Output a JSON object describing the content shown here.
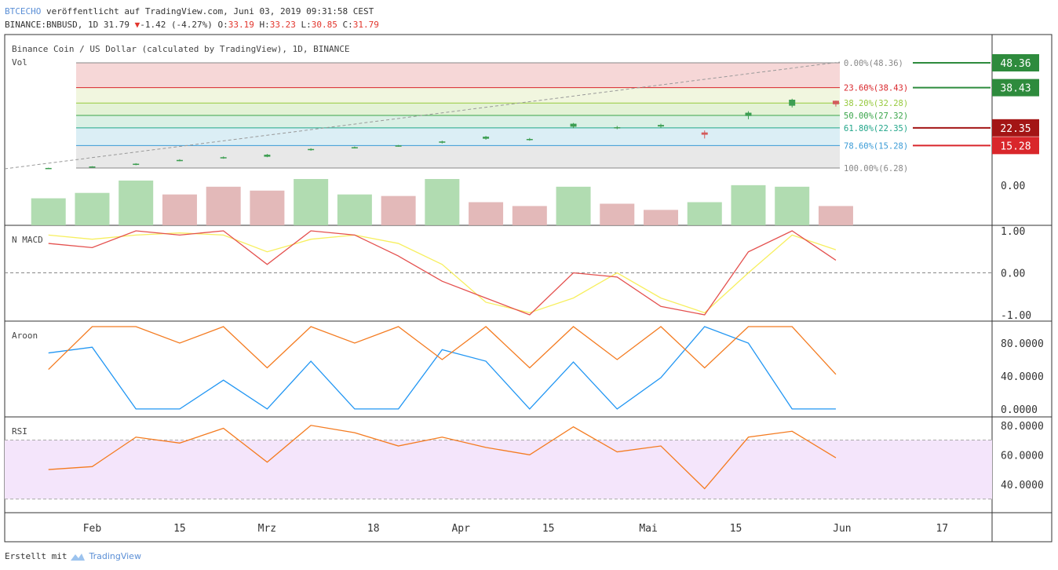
{
  "header": {
    "publisher": "BTCECHO",
    "published_text": "veröffentlicht auf TradingView.com, Juni 03, 2019 09:31:58 CEST",
    "symbol_line_prefix": "BINANCE:BNBUSD, 1D 31.79",
    "change": "-1.42 (-4.27%)",
    "ohlc_o_label": "O:",
    "ohlc_o": "33.19",
    "ohlc_h_label": "H:",
    "ohlc_h": "33.23",
    "ohlc_l_label": "L:",
    "ohlc_l": "30.85",
    "ohlc_c_label": "C:",
    "ohlc_c": "31.79"
  },
  "footer": {
    "created_with": "Erstellt mit",
    "brand": "TradingView"
  },
  "colors": {
    "up": "#3d9e52",
    "down": "#d35b5b",
    "vol_up": "#a9d8a9",
    "vol_down": "#e0b1b1",
    "macd": "#e4504e",
    "signal": "#f7ef5f",
    "aroon_up": "#f47b20",
    "aroon_down": "#2196f3",
    "rsi": "#f47b20",
    "rsi_band": "#f4e5fb",
    "price_green": "#2e8b3d",
    "price_red": "#d9262b",
    "price_darkred": "#a31515"
  },
  "chart_data": [
    {
      "type": "candlestick",
      "title": "Binance Coin / US Dollar (calculated by TradingView), 1D, BINANCE",
      "sub_label": "Vol",
      "ohlc": [
        {
          "x": "2019-01-25",
          "o": 6.2,
          "h": 6.4,
          "l": 6.0,
          "c": 6.3
        },
        {
          "x": "2019-02-01",
          "o": 6.5,
          "h": 7.0,
          "l": 6.4,
          "c": 6.9
        },
        {
          "x": "2019-02-08",
          "o": 7.6,
          "h": 8.2,
          "l": 7.4,
          "c": 8.0
        },
        {
          "x": "2019-02-15",
          "o": 9.2,
          "h": 9.8,
          "l": 9.0,
          "c": 9.5
        },
        {
          "x": "2019-02-22",
          "o": 10.3,
          "h": 10.9,
          "l": 10.0,
          "c": 10.6
        },
        {
          "x": "2019-03-01",
          "o": 10.8,
          "h": 11.9,
          "l": 10.6,
          "c": 11.6
        },
        {
          "x": "2019-03-08",
          "o": 13.5,
          "h": 14.2,
          "l": 13.2,
          "c": 13.9
        },
        {
          "x": "2019-03-15",
          "o": 14.4,
          "h": 14.9,
          "l": 14.1,
          "c": 14.6
        },
        {
          "x": "2019-03-22",
          "o": 15.0,
          "h": 15.5,
          "l": 14.8,
          "c": 15.3
        },
        {
          "x": "2019-03-29",
          "o": 16.4,
          "h": 17.2,
          "l": 16.1,
          "c": 16.9
        },
        {
          "x": "2019-04-05",
          "o": 18.0,
          "h": 19.1,
          "l": 17.6,
          "c": 18.8
        },
        {
          "x": "2019-04-12",
          "o": 17.6,
          "h": 18.3,
          "l": 17.2,
          "c": 17.9
        },
        {
          "x": "2019-04-19",
          "o": 22.8,
          "h": 24.3,
          "l": 22.2,
          "c": 24.0
        },
        {
          "x": "2019-04-26",
          "o": 22.5,
          "h": 23.1,
          "l": 21.8,
          "c": 22.6
        },
        {
          "x": "2019-05-03",
          "o": 22.9,
          "h": 24.0,
          "l": 22.4,
          "c": 23.5
        },
        {
          "x": "2019-05-10",
          "o": 20.5,
          "h": 21.3,
          "l": 18.1,
          "c": 19.6
        },
        {
          "x": "2019-05-17",
          "o": 27.1,
          "h": 29.0,
          "l": 25.8,
          "c": 28.4
        },
        {
          "x": "2019-05-24",
          "o": 31.2,
          "h": 34.0,
          "l": 30.5,
          "c": 33.6
        },
        {
          "x": "2019-05-31",
          "o": 33.19,
          "h": 33.23,
          "l": 30.85,
          "c": 31.79
        }
      ],
      "volume": [
        {
          "x": "2019-01-25",
          "v": 35,
          "dir": "up"
        },
        {
          "x": "2019-02-01",
          "v": 42,
          "dir": "up"
        },
        {
          "x": "2019-02-08",
          "v": 58,
          "dir": "up"
        },
        {
          "x": "2019-02-15",
          "v": 40,
          "dir": "down"
        },
        {
          "x": "2019-02-22",
          "v": 50,
          "dir": "down"
        },
        {
          "x": "2019-03-01",
          "v": 45,
          "dir": "down"
        },
        {
          "x": "2019-03-08",
          "v": 60,
          "dir": "up"
        },
        {
          "x": "2019-03-15",
          "v": 40,
          "dir": "up"
        },
        {
          "x": "2019-03-22",
          "v": 38,
          "dir": "down"
        },
        {
          "x": "2019-03-29",
          "v": 60,
          "dir": "up"
        },
        {
          "x": "2019-04-05",
          "v": 30,
          "dir": "down"
        },
        {
          "x": "2019-04-12",
          "v": 25,
          "dir": "down"
        },
        {
          "x": "2019-04-19",
          "v": 50,
          "dir": "up"
        },
        {
          "x": "2019-04-26",
          "v": 28,
          "dir": "down"
        },
        {
          "x": "2019-05-03",
          "v": 20,
          "dir": "down"
        },
        {
          "x": "2019-05-10",
          "v": 30,
          "dir": "up"
        },
        {
          "x": "2019-05-17",
          "v": 52,
          "dir": "up"
        },
        {
          "x": "2019-05-24",
          "v": 50,
          "dir": "up"
        },
        {
          "x": "2019-05-31",
          "v": 25,
          "dir": "down"
        }
      ],
      "x_ticks": [
        "Feb",
        "15",
        "Mrz",
        "18",
        "Apr",
        "15",
        "Mai",
        "15",
        "Jun",
        "17"
      ],
      "fibonacci": [
        {
          "label": "0.00%(48.36)",
          "value": 48.36,
          "color": "#888888",
          "fill": "#f4d0d0"
        },
        {
          "label": "23.60%(38.43)",
          "value": 38.43,
          "color": "#d9262b",
          "fill": "#eef5d9"
        },
        {
          "label": "38.20%(32.28)",
          "value": 32.28,
          "color": "#96c93d",
          "fill": "#dff0cf"
        },
        {
          "label": "50.00%(27.32)",
          "value": 27.32,
          "color": "#3aa54a",
          "fill": "#d4ede0"
        },
        {
          "label": "61.80%(22.35)",
          "value": 22.35,
          "color": "#22a68a",
          "fill": "#d5ebf3"
        },
        {
          "label": "78.60%(15.28)",
          "value": 15.28,
          "color": "#3a9bd6",
          "fill": "#e4e4e4"
        },
        {
          "label": "100.00%(6.28)",
          "value": 6.28,
          "color": "#888888",
          "fill": ""
        }
      ],
      "price_tags": [
        {
          "label": "48.36",
          "value": 48.36,
          "color": "#2e8b3d"
        },
        {
          "label": "38.43",
          "value": 38.43,
          "color": "#2e8b3d"
        },
        {
          "label": "22.35",
          "value": 22.35,
          "color": "#a31515"
        },
        {
          "label": "15.28",
          "value": 15.28,
          "color": "#d9262b"
        }
      ],
      "vol_axis_label": "0.00"
    },
    {
      "type": "line",
      "title": "N MACD",
      "y_ticks": [
        "1.00",
        "0.00",
        "-1.00"
      ],
      "ylim": [
        -1,
        1
      ],
      "series": [
        {
          "key": "macd",
          "values": [
            {
              "x": "2019-01-25",
              "y": 0.7
            },
            {
              "x": "2019-02-01",
              "y": 0.6
            },
            {
              "x": "2019-02-08",
              "y": 1.0
            },
            {
              "x": "2019-02-15",
              "y": 0.9
            },
            {
              "x": "2019-02-22",
              "y": 1.0
            },
            {
              "x": "2019-03-01",
              "y": 0.2
            },
            {
              "x": "2019-03-08",
              "y": 1.0
            },
            {
              "x": "2019-03-15",
              "y": 0.9
            },
            {
              "x": "2019-03-22",
              "y": 0.4
            },
            {
              "x": "2019-03-29",
              "y": -0.2
            },
            {
              "x": "2019-04-05",
              "y": -0.6
            },
            {
              "x": "2019-04-12",
              "y": -1.0
            },
            {
              "x": "2019-04-19",
              "y": 0.0
            },
            {
              "x": "2019-04-26",
              "y": -0.1
            },
            {
              "x": "2019-05-03",
              "y": -0.8
            },
            {
              "x": "2019-05-10",
              "y": -1.0
            },
            {
              "x": "2019-05-17",
              "y": 0.5
            },
            {
              "x": "2019-05-24",
              "y": 1.0
            },
            {
              "x": "2019-05-31",
              "y": 0.3
            }
          ]
        },
        {
          "key": "signal",
          "values": [
            {
              "x": "2019-01-25",
              "y": 0.9
            },
            {
              "x": "2019-02-01",
              "y": 0.8
            },
            {
              "x": "2019-02-08",
              "y": 0.9
            },
            {
              "x": "2019-02-15",
              "y": 0.95
            },
            {
              "x": "2019-02-22",
              "y": 0.9
            },
            {
              "x": "2019-03-01",
              "y": 0.5
            },
            {
              "x": "2019-03-08",
              "y": 0.8
            },
            {
              "x": "2019-03-15",
              "y": 0.9
            },
            {
              "x": "2019-03-22",
              "y": 0.7
            },
            {
              "x": "2019-03-29",
              "y": 0.2
            },
            {
              "x": "2019-04-05",
              "y": -0.7
            },
            {
              "x": "2019-04-12",
              "y": -0.95
            },
            {
              "x": "2019-04-19",
              "y": -0.6
            },
            {
              "x": "2019-04-26",
              "y": 0.0
            },
            {
              "x": "2019-05-03",
              "y": -0.6
            },
            {
              "x": "2019-05-10",
              "y": -0.95
            },
            {
              "x": "2019-05-17",
              "y": 0.0
            },
            {
              "x": "2019-05-24",
              "y": 0.9
            },
            {
              "x": "2019-05-31",
              "y": 0.55
            }
          ]
        }
      ]
    },
    {
      "type": "line",
      "title": "Aroon",
      "y_ticks": [
        "80.0000",
        "40.0000",
        "0.0000"
      ],
      "ylim": [
        -2,
        100
      ],
      "series": [
        {
          "key": "aroon_up",
          "values": [
            {
              "x": "2019-01-25",
              "y": 48
            },
            {
              "x": "2019-02-01",
              "y": 100
            },
            {
              "x": "2019-02-08",
              "y": 100
            },
            {
              "x": "2019-02-15",
              "y": 80
            },
            {
              "x": "2019-02-22",
              "y": 100
            },
            {
              "x": "2019-03-01",
              "y": 50
            },
            {
              "x": "2019-03-08",
              "y": 100
            },
            {
              "x": "2019-03-15",
              "y": 80
            },
            {
              "x": "2019-03-22",
              "y": 100
            },
            {
              "x": "2019-03-29",
              "y": 60
            },
            {
              "x": "2019-04-05",
              "y": 100
            },
            {
              "x": "2019-04-12",
              "y": 50
            },
            {
              "x": "2019-04-19",
              "y": 100
            },
            {
              "x": "2019-04-26",
              "y": 60
            },
            {
              "x": "2019-05-03",
              "y": 100
            },
            {
              "x": "2019-05-10",
              "y": 50
            },
            {
              "x": "2019-05-17",
              "y": 100
            },
            {
              "x": "2019-05-24",
              "y": 100
            },
            {
              "x": "2019-05-31",
              "y": 42
            }
          ]
        },
        {
          "key": "aroon_down",
          "values": [
            {
              "x": "2019-01-25",
              "y": 68
            },
            {
              "x": "2019-02-01",
              "y": 75
            },
            {
              "x": "2019-02-08",
              "y": 0
            },
            {
              "x": "2019-02-15",
              "y": 0
            },
            {
              "x": "2019-02-22",
              "y": 35
            },
            {
              "x": "2019-03-01",
              "y": 0
            },
            {
              "x": "2019-03-08",
              "y": 58
            },
            {
              "x": "2019-03-15",
              "y": 0
            },
            {
              "x": "2019-03-22",
              "y": 0
            },
            {
              "x": "2019-03-29",
              "y": 72
            },
            {
              "x": "2019-04-05",
              "y": 58
            },
            {
              "x": "2019-04-12",
              "y": 0
            },
            {
              "x": "2019-04-19",
              "y": 57
            },
            {
              "x": "2019-04-26",
              "y": 0
            },
            {
              "x": "2019-05-03",
              "y": 38
            },
            {
              "x": "2019-05-10",
              "y": 100
            },
            {
              "x": "2019-05-17",
              "y": 80
            },
            {
              "x": "2019-05-24",
              "y": 0
            },
            {
              "x": "2019-05-31",
              "y": 0
            }
          ]
        }
      ]
    },
    {
      "type": "line",
      "title": "RSI",
      "y_ticks": [
        "80.0000",
        "60.0000",
        "40.0000"
      ],
      "ylim": [
        25,
        82
      ],
      "bands": [
        70,
        30
      ],
      "series": [
        {
          "key": "rsi",
          "values": [
            {
              "x": "2019-01-25",
              "y": 50
            },
            {
              "x": "2019-02-01",
              "y": 52
            },
            {
              "x": "2019-02-08",
              "y": 72
            },
            {
              "x": "2019-02-15",
              "y": 68
            },
            {
              "x": "2019-02-22",
              "y": 78
            },
            {
              "x": "2019-03-01",
              "y": 55
            },
            {
              "x": "2019-03-08",
              "y": 80
            },
            {
              "x": "2019-03-15",
              "y": 75
            },
            {
              "x": "2019-03-22",
              "y": 66
            },
            {
              "x": "2019-03-29",
              "y": 72
            },
            {
              "x": "2019-04-05",
              "y": 65
            },
            {
              "x": "2019-04-12",
              "y": 60
            },
            {
              "x": "2019-04-19",
              "y": 79
            },
            {
              "x": "2019-04-26",
              "y": 62
            },
            {
              "x": "2019-05-03",
              "y": 66
            },
            {
              "x": "2019-05-10",
              "y": 37
            },
            {
              "x": "2019-05-17",
              "y": 72
            },
            {
              "x": "2019-05-24",
              "y": 76
            },
            {
              "x": "2019-05-31",
              "y": 58
            }
          ]
        }
      ]
    }
  ]
}
